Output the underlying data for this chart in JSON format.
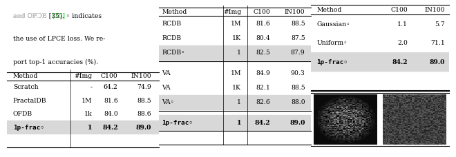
{
  "background_color": "#ffffff",
  "text_color": "#000000",
  "highlight_color": "#d8d8d8",
  "ref_color": "#00cc00",
  "table1": {
    "header": [
      "Method",
      "#Img",
      "C100",
      "IN100"
    ],
    "rows": [
      [
        "Scratch",
        "-",
        "64.2",
        "74.9"
      ],
      [
        "FractalDB",
        "1M",
        "81.6",
        "88.5"
      ],
      [
        "OFDB",
        "1k",
        "84.0",
        "88.6"
      ],
      [
        "1p-frac◦",
        "1",
        "84.2",
        "89.0"
      ]
    ]
  },
  "table2": {
    "header": [
      "Method",
      "#Img",
      "C100",
      "IN100"
    ],
    "rows": [
      [
        "RCDB",
        "1M",
        "81.6",
        "88.5"
      ],
      [
        "RCDB",
        "1K",
        "80.4",
        "87.5"
      ],
      [
        "RCDB◦",
        "1",
        "82.5",
        "87.9"
      ],
      [
        "VA",
        "1M",
        "84.9",
        "90.3"
      ],
      [
        "VA",
        "1K",
        "82.1",
        "88.5"
      ],
      [
        "VA◦",
        "1",
        "82.6",
        "88.0"
      ],
      [
        "1p-frac◦",
        "1",
        "84.2",
        "89.0"
      ]
    ],
    "highlight_rows": [
      2,
      5,
      6
    ]
  },
  "table3": {
    "header": [
      "Method",
      "C100",
      "IN100"
    ],
    "rows": [
      [
        "Gaussian◦",
        "1.1",
        "5.7"
      ],
      [
        "Uniform◦",
        "2.0",
        "71.1"
      ],
      [
        "1p-frac◦",
        "84.2",
        "89.0"
      ]
    ]
  }
}
